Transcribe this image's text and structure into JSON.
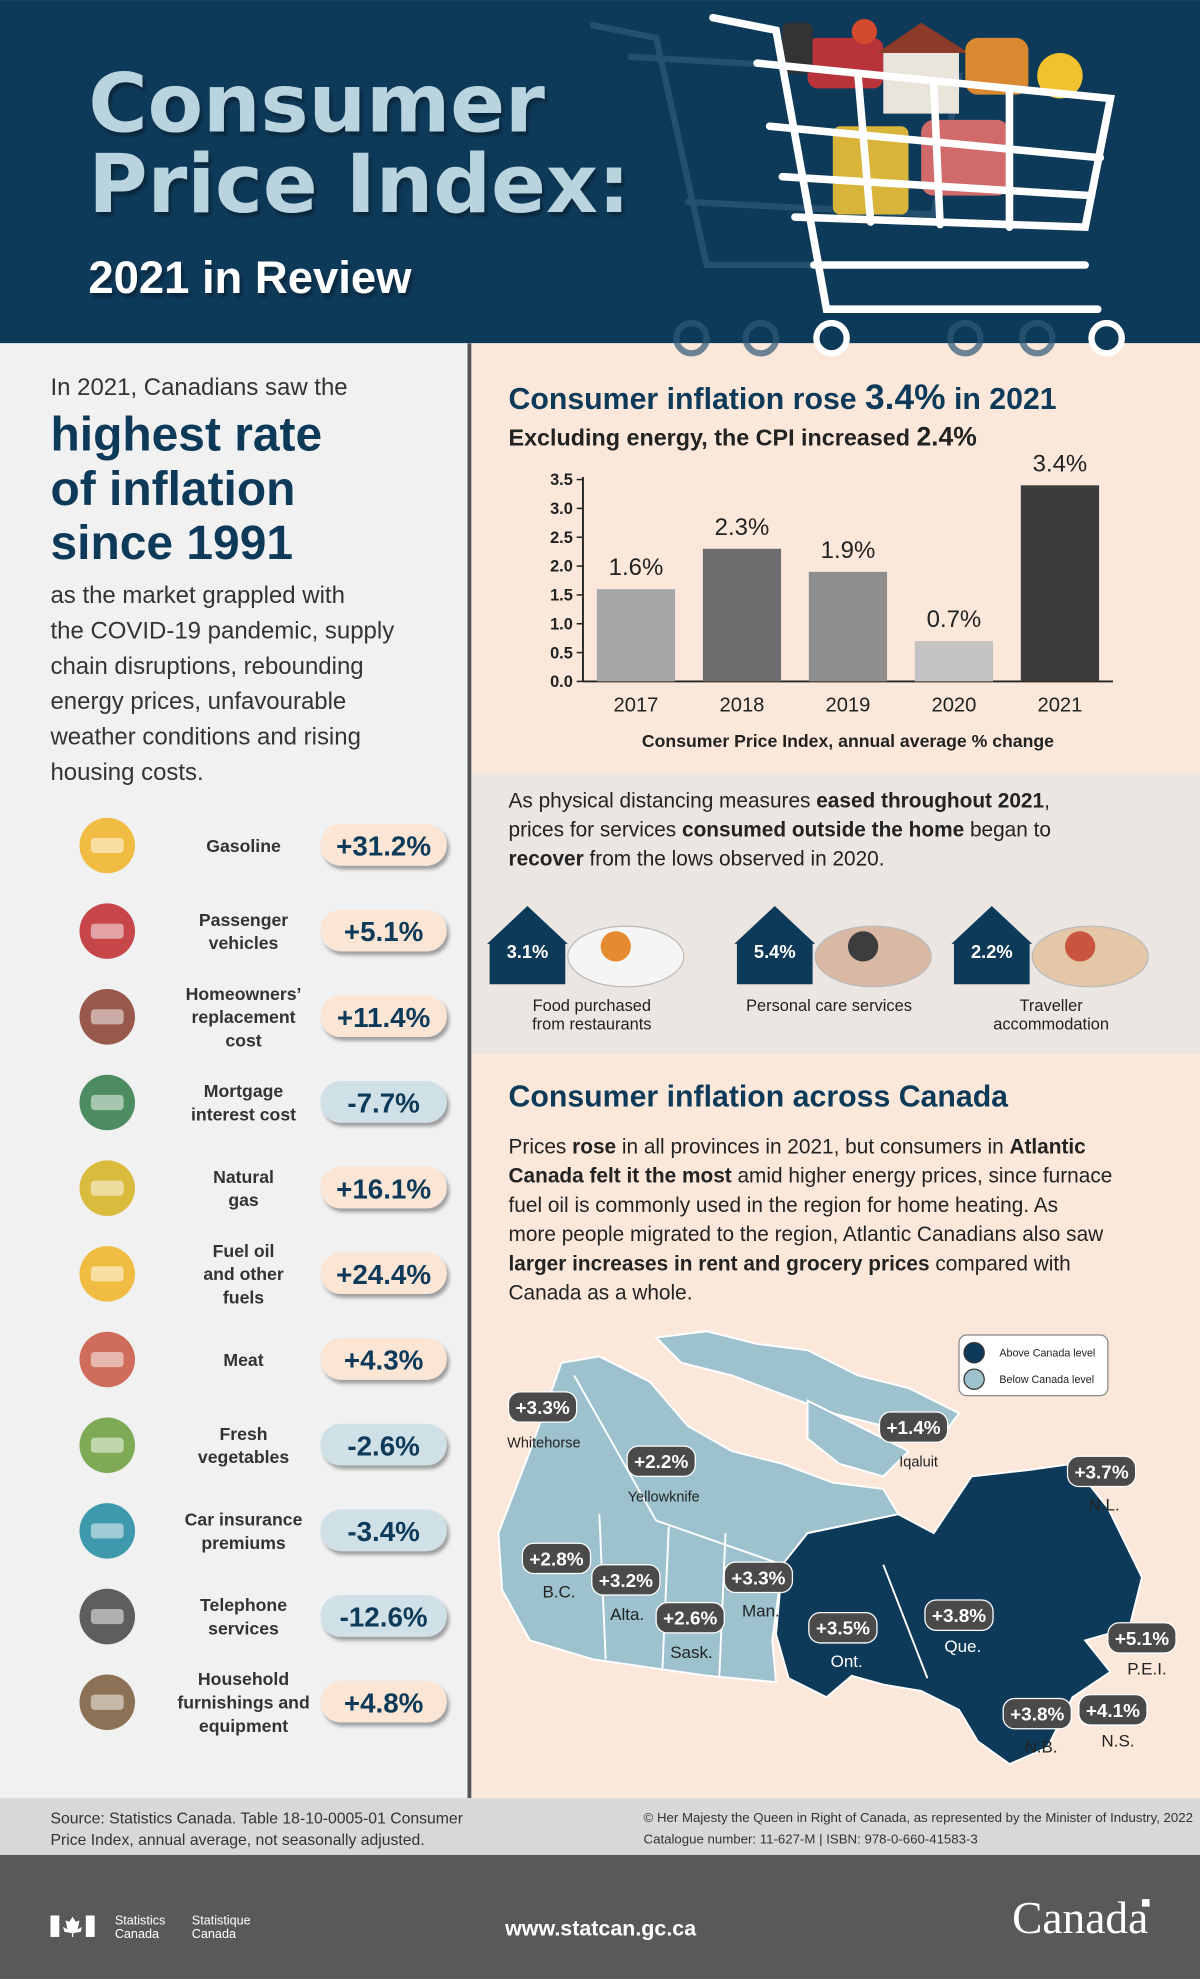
{
  "header": {
    "title_lines": [
      "Consumer",
      "Price Index:"
    ],
    "subtitle": "2021 in Review"
  },
  "intro": {
    "lead": "In 2021, Canadians saw the",
    "headline": [
      "highest rate",
      "of inflation",
      "since 1991"
    ],
    "body": [
      "as the market grappled with",
      "the COVID-19 pandemic, supply",
      "chain disruptions, rebounding",
      "energy prices, unfavourable",
      "weather conditions and rising",
      "housing costs."
    ]
  },
  "items": [
    {
      "label": [
        "Gasoline"
      ],
      "value": "+31.2%"
    },
    {
      "label": [
        "Passenger",
        "vehicles"
      ],
      "value": "+5.1%"
    },
    {
      "label": [
        "Homeowners’",
        "replacement",
        "cost"
      ],
      "value": "+11.4%"
    },
    {
      "label": [
        "Mortgage",
        "interest cost"
      ],
      "value": "-7.7%"
    },
    {
      "label": [
        "Natural",
        "gas"
      ],
      "value": "+16.1%"
    },
    {
      "label": [
        "Fuel oil",
        "and other",
        "fuels"
      ],
      "value": "+24.4%"
    },
    {
      "label": [
        "Meat"
      ],
      "value": "+4.3%"
    },
    {
      "label": [
        "Fresh",
        "vegetables"
      ],
      "value": "-2.6%"
    },
    {
      "label": [
        "Car insurance",
        "premiums"
      ],
      "value": "-3.4%"
    },
    {
      "label": [
        "Telephone",
        "services"
      ],
      "value": "-12.6%"
    },
    {
      "label": [
        "Household",
        "furnishings and",
        "equipment"
      ],
      "value": "+4.8%"
    }
  ],
  "chart_data": {
    "type": "bar",
    "title": [
      "Consumer inflation rose ",
      {
        "b": "3.4%"
      },
      " in 2021"
    ],
    "subtitle": [
      "Excluding energy, the CPI increased ",
      {
        "b": "2.4%"
      }
    ],
    "categories": [
      "2017",
      "2018",
      "2019",
      "2020",
      "2021"
    ],
    "values": [
      1.6,
      2.3,
      1.9,
      0.7,
      3.4
    ],
    "value_labels": [
      "1.6%",
      "2.3%",
      "1.9%",
      "0.7%",
      "3.4%"
    ],
    "colors": [
      "#a7a7a7",
      "#6e6e6e",
      "#8e8e8e",
      "#c3c3c3",
      "#3c3c3c"
    ],
    "ylim": [
      0,
      3.5
    ],
    "yticks": [
      {
        "value": 0,
        "label": "0.0"
      },
      0.5,
      {
        "value": 1,
        "label": "1.0"
      },
      1.5,
      {
        "value": 2,
        "label": "2.0"
      },
      2.5,
      {
        "value": 3,
        "label": "3.0"
      },
      3.5
    ],
    "xlabel": "Consumer Price Index, annual average % change"
  },
  "services": {
    "intro": [
      [
        "As physical distancing measures ",
        {
          "b": "eased throughout 2021"
        },
        ","
      ],
      [
        "prices for services ",
        {
          "b": "consumed outside the home"
        },
        " began to"
      ],
      [
        {
          "b": "recover"
        },
        " from the lows observed in 2020."
      ]
    ],
    "items": [
      {
        "value": "3.1%",
        "label": [
          "Food purchased",
          "from restaurants"
        ]
      },
      {
        "value": "5.4%",
        "label": [
          "Personal care services"
        ]
      },
      {
        "value": "2.2%",
        "label": [
          "Traveller",
          "accommodation"
        ]
      }
    ]
  },
  "map": {
    "title": "Consumer inflation across Canada",
    "body": [
      [
        "Prices ",
        {
          "b": "rose"
        },
        " in all provinces in 2021, but consumers in ",
        {
          "b": "Atlantic"
        }
      ],
      [
        {
          "b": "Canada felt it the most"
        },
        " amid higher energy prices, since furnace"
      ],
      [
        "fuel oil is commonly used in the region for home heating. As"
      ],
      [
        "more people migrated to the region, Atlantic Canadians also saw"
      ],
      [
        {
          "b": "larger increases in rent and grocery prices"
        },
        " compared with"
      ],
      [
        "Canada as a whole."
      ]
    ],
    "legend": [
      "Above Canada level",
      "Below Canada level"
    ],
    "regions": [
      {
        "name": "Whitehorse",
        "value": "+3.3%"
      },
      {
        "name": "Yellowknife",
        "value": "+2.2%"
      },
      {
        "name": "Iqaluit",
        "value": "+1.4%"
      },
      {
        "name": "N.L.",
        "value": "+3.7%"
      },
      {
        "name": "B.C.",
        "value": "+2.8%"
      },
      {
        "name": "Alta.",
        "value": "+3.2%"
      },
      {
        "name": "Sask.",
        "value": "+2.6%"
      },
      {
        "name": "Man.",
        "value": "+3.3%"
      },
      {
        "name": "Ont.",
        "value": "+3.5%"
      },
      {
        "name": "Que.",
        "value": "+3.8%"
      },
      {
        "name": "P.E.I.",
        "value": "+5.1%"
      },
      {
        "name": "N.B.",
        "value": "+3.8%"
      },
      {
        "name": "N.S.",
        "value": "+4.1%"
      }
    ]
  },
  "footer": {
    "source": [
      "Source: Statistics Canada. Table 18-10-0005-01 Consumer",
      "Price Index, annual average, not seasonally adjusted."
    ],
    "copyright": [
      "© Her Majesty the Queen in Right of Canada, as represented by the Minister of Industry, 2022",
      "Catalogue number: 11-627-M | ISBN: 978-0-660-41583-3"
    ],
    "brand_en": [
      "Statistics",
      "Canada"
    ],
    "brand_fr": [
      "Statistique",
      "Canada"
    ],
    "url": "www.statcan.gc.ca",
    "wordmark": "Canada"
  }
}
